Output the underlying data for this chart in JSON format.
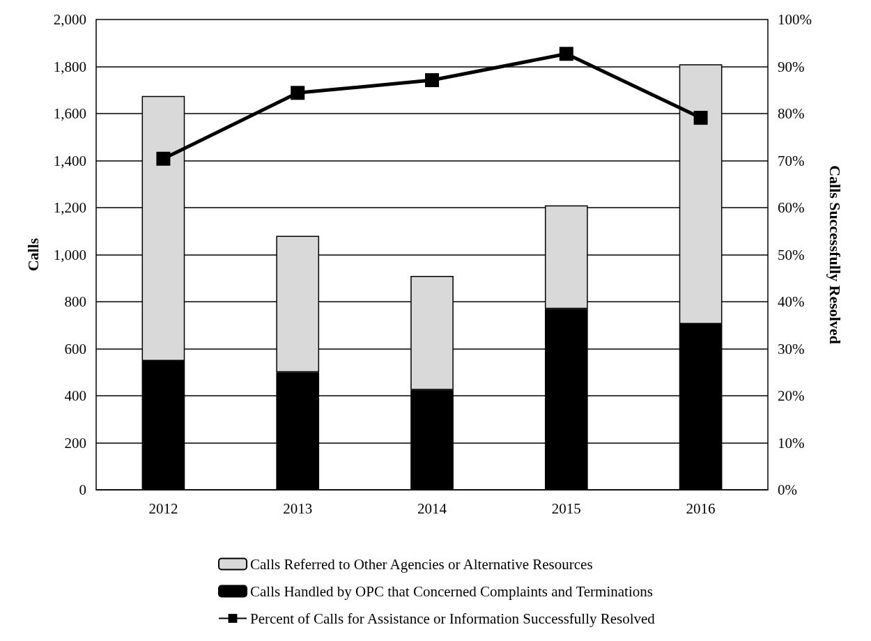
{
  "chart_data": {
    "type": "bar",
    "stacked": true,
    "ylabel": "Calls",
    "y2label": "Calls Successfully Resolved",
    "categories": [
      "2012",
      "2013",
      "2014",
      "2015",
      "2016"
    ],
    "series": [
      {
        "name": "Calls Handled by OPC that Concerned Complaints and Terminations",
        "color": "#000000",
        "values": [
          548,
          500,
          425,
          770,
          705
        ]
      },
      {
        "name": "Calls Referred to Other Agencies or Alternative Resources",
        "color": "#d9d9d9",
        "values": [
          1127,
          580,
          485,
          440,
          1105
        ]
      },
      {
        "name": "Percent of Calls for Assistance or Information Successfully Resolved",
        "type": "line",
        "axis": "y2",
        "color": "#000000",
        "values": [
          70.4,
          84.4,
          87.1,
          92.7,
          79.1
        ]
      }
    ],
    "ylim": [
      0,
      2000
    ],
    "yticks": [
      0,
      200,
      400,
      600,
      800,
      {
        "value": 1000,
        "label": "1,000"
      },
      {
        "value": 1200,
        "label": "1,200"
      },
      {
        "value": 1400,
        "label": "1,400"
      },
      {
        "value": 1600,
        "label": "1,600"
      },
      {
        "value": 1800,
        "label": "1,800"
      },
      {
        "value": 2000,
        "label": "2,000"
      }
    ],
    "y2lim": [
      0,
      100
    ],
    "y2ticks": [
      {
        "value": 0,
        "label": "0%"
      },
      {
        "value": 10,
        "label": "10%"
      },
      {
        "value": 20,
        "label": "20%"
      },
      {
        "value": 30,
        "label": "30%"
      },
      {
        "value": 40,
        "label": "40%"
      },
      {
        "value": 50,
        "label": "50%"
      },
      {
        "value": 60,
        "label": "60%"
      },
      {
        "value": 70,
        "label": "70%"
      },
      {
        "value": 80,
        "label": "80%"
      },
      {
        "value": 90,
        "label": "90%"
      },
      {
        "value": 100,
        "label": "100%"
      }
    ],
    "grid": "y",
    "legend": "bottom",
    "marker": "square",
    "line_style": "solid"
  }
}
